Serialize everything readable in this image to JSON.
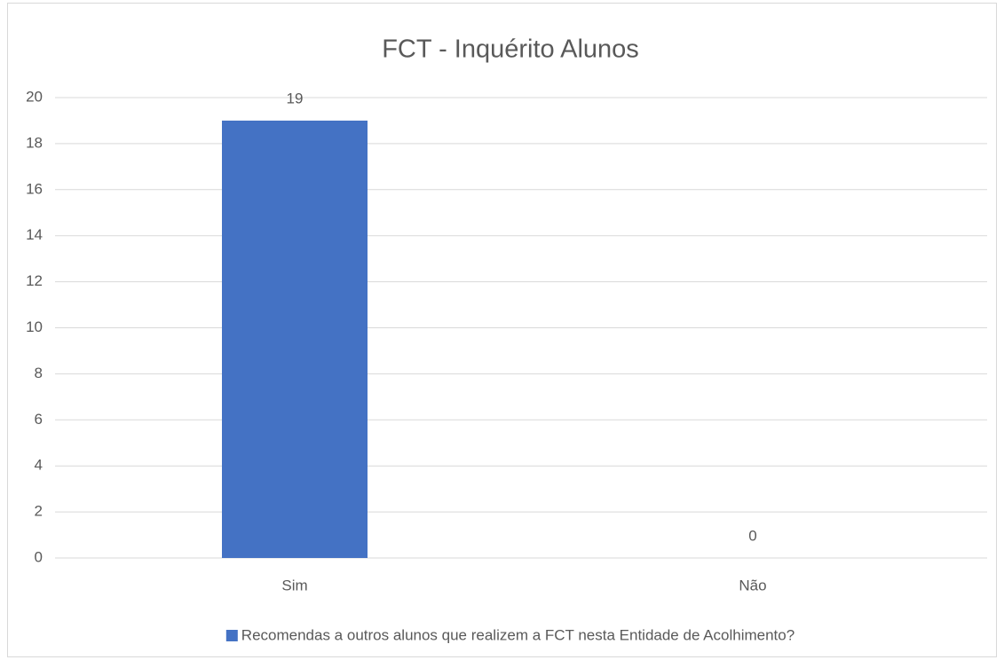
{
  "chart_data": {
    "type": "bar",
    "title": "FCT - Inquérito Alunos",
    "categories": [
      "Sim",
      "Não"
    ],
    "series": [
      {
        "name": "Recomendas a outros alunos que realizem a FCT nesta Entidade de Acolhimento?",
        "color": "#4472c4",
        "values": [
          19,
          0
        ]
      }
    ],
    "ylim": [
      0,
      20
    ],
    "yticks": [
      0,
      2,
      4,
      6,
      8,
      10,
      12,
      14,
      16,
      18,
      20
    ],
    "grid": true,
    "legend": "bottom"
  }
}
